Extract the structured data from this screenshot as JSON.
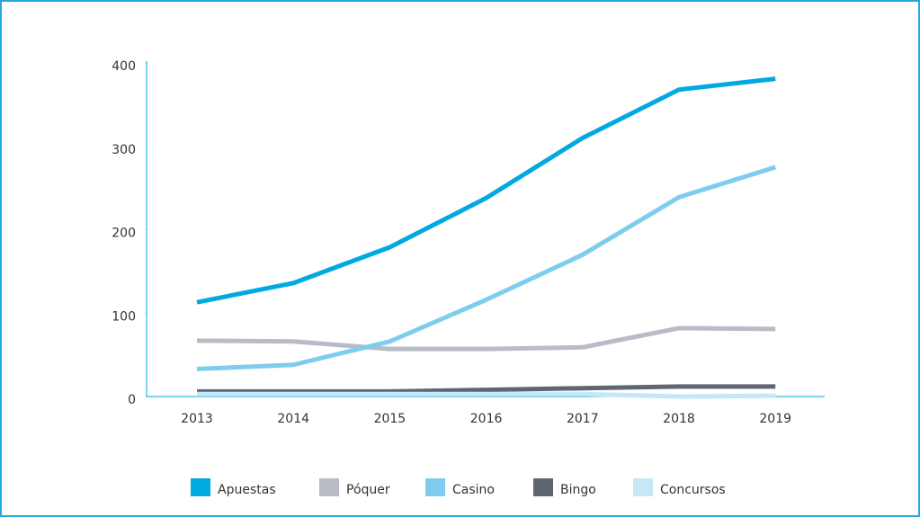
{
  "chart_data": {
    "type": "line",
    "categories": [
      "2013",
      "2014",
      "2015",
      "2016",
      "2017",
      "2018",
      "2019"
    ],
    "series": [
      {
        "name": "Apuestas",
        "color": "#00a9e0",
        "values": [
          113,
          136,
          179,
          238,
          310,
          368,
          381
        ]
      },
      {
        "name": "Póquer",
        "color": "#b8bcc4",
        "values": [
          67,
          66,
          57,
          57,
          59,
          82,
          81
        ]
      },
      {
        "name": "Casino",
        "color": "#7fcdee",
        "values": [
          33,
          38,
          66,
          116,
          170,
          239,
          275
        ]
      },
      {
        "name": "Bingo",
        "color": "#5f6673",
        "values": [
          6,
          6,
          6,
          8,
          10,
          12,
          12
        ]
      },
      {
        "name": "Concursos",
        "color": "#c5e8f8",
        "values": [
          3,
          3,
          3,
          3,
          3,
          0,
          1
        ]
      }
    ],
    "ylim": [
      0,
      400
    ],
    "yticks": [
      0,
      100,
      200,
      300,
      400
    ],
    "legend": "bottom"
  }
}
